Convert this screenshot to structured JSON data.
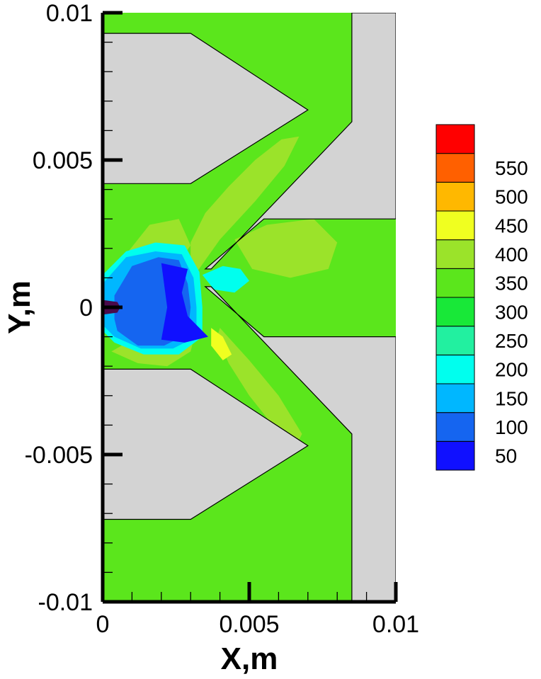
{
  "chart_data": {
    "type": "contour",
    "xlabel": "X,m",
    "ylabel": "Y,m",
    "xlim": [
      0,
      0.01
    ],
    "ylim": [
      -0.01,
      0.01
    ],
    "x_ticks": [
      {
        "value": 0,
        "label": "0"
      },
      {
        "value": 0.005,
        "label": "0.005"
      },
      {
        "value": 0.01,
        "label": "0.01"
      }
    ],
    "y_ticks": [
      {
        "value": 0.01,
        "label": "0.01"
      },
      {
        "value": 0.005,
        "label": "0.005"
      },
      {
        "value": 0,
        "label": "0"
      },
      {
        "value": -0.005,
        "label": "-0.005"
      },
      {
        "value": -0.01,
        "label": "-0.01"
      }
    ],
    "x_minor_step": 0.001,
    "y_minor_step": 0.001,
    "legend_position": "right",
    "levels": [
      {
        "value": 50,
        "label": "50",
        "color": "#1010ff"
      },
      {
        "value": 100,
        "label": "100",
        "color": "#1565f0"
      },
      {
        "value": 150,
        "label": "150",
        "color": "#00b7ff"
      },
      {
        "value": 200,
        "label": "200",
        "color": "#00ffee"
      },
      {
        "value": 250,
        "label": "250",
        "color": "#22f0a0"
      },
      {
        "value": 300,
        "label": "300",
        "color": "#18e838"
      },
      {
        "value": 350,
        "label": "350",
        "color": "#5be61c"
      },
      {
        "value": 400,
        "label": "400",
        "color": "#9be32a"
      },
      {
        "value": 450,
        "label": "450",
        "color": "#f0ff20"
      },
      {
        "value": 500,
        "label": "500",
        "color": "#ffb800"
      },
      {
        "value": 550,
        "label": "550",
        "color": "#ff6000"
      },
      {
        "value": 600,
        "label": "",
        "color": "#ff0000"
      }
    ],
    "background_fill_color": "#5be61c",
    "solid_color": "#d3d3d3",
    "solids": [
      {
        "name": "upper-electrode",
        "points": [
          [
            0,
            0.0093
          ],
          [
            0.003,
            0.0093
          ],
          [
            0.007,
            0.0067
          ],
          [
            0.003,
            0.0042
          ],
          [
            0,
            0.0042
          ]
        ]
      },
      {
        "name": "lower-electrode",
        "points": [
          [
            0,
            -0.0021
          ],
          [
            0.003,
            -0.0021
          ],
          [
            0.007,
            -0.0047
          ],
          [
            0.003,
            -0.0072
          ],
          [
            0,
            -0.0072
          ]
        ]
      },
      {
        "name": "right-upper-wall",
        "points": [
          [
            0.0085,
            0.0063
          ],
          [
            0.0085,
            0.01
          ],
          [
            0.01,
            0.01
          ],
          [
            0.01,
            0.003
          ],
          [
            0.0055,
            0.003
          ],
          [
            0.0035,
            0.0013
          ],
          [
            0.0037,
            0.0013
          ]
        ]
      },
      {
        "name": "right-lower-wall",
        "points": [
          [
            0.0035,
            0.0007
          ],
          [
            0.0055,
            -0.001
          ],
          [
            0.01,
            -0.001
          ],
          [
            0.01,
            -0.01
          ],
          [
            0.0085,
            -0.01
          ],
          [
            0.0085,
            -0.0043
          ],
          [
            0.0037,
            0.0007
          ]
        ]
      }
    ],
    "contour_regions": [
      {
        "level": 400,
        "points": [
          [
            0.003,
            0.0009
          ],
          [
            0.004,
            0.0023
          ],
          [
            0.0052,
            0.0036
          ],
          [
            0.0062,
            0.0048
          ],
          [
            0.0067,
            0.0058
          ],
          [
            0.0061,
            0.0057
          ],
          [
            0.0052,
            0.005
          ],
          [
            0.0043,
            0.0041
          ],
          [
            0.0035,
            0.0032
          ],
          [
            0.003,
            0.0022
          ]
        ]
      },
      {
        "level": 400,
        "points": [
          [
            0.004,
            -0.0007
          ],
          [
            0.005,
            -0.0018
          ],
          [
            0.006,
            -0.003
          ],
          [
            0.0068,
            -0.0043
          ],
          [
            0.0066,
            -0.0047
          ],
          [
            0.0058,
            -0.004
          ],
          [
            0.005,
            -0.003
          ],
          [
            0.0043,
            -0.0019
          ],
          [
            0.0039,
            -0.001
          ]
        ]
      },
      {
        "level": 400,
        "points": [
          [
            0.0045,
            0.0023
          ],
          [
            0.0056,
            0.0028
          ],
          [
            0.0072,
            0.003
          ],
          [
            0.008,
            0.0022
          ],
          [
            0.0077,
            0.0013
          ],
          [
            0.0064,
            0.001
          ],
          [
            0.0051,
            0.0013
          ]
        ]
      },
      {
        "level": 400,
        "points": [
          [
            0.0008,
            0.0018
          ],
          [
            0.0016,
            0.0028
          ],
          [
            0.0026,
            0.003
          ],
          [
            0.003,
            0.0021
          ],
          [
            0.0025,
            0.0014
          ],
          [
            0.0015,
            0.0012
          ]
        ]
      },
      {
        "level": 400,
        "points": [
          [
            0.0003,
            -0.0015
          ],
          [
            0.0012,
            -0.0019
          ],
          [
            0.0022,
            -0.002
          ],
          [
            0.003,
            -0.0015
          ],
          [
            0.0032,
            -0.0007
          ],
          [
            0.002,
            -0.001
          ],
          [
            0.001,
            -0.0011
          ]
        ]
      },
      {
        "level": 450,
        "points": [
          [
            0.0037,
            -0.0007
          ],
          [
            0.0041,
            -0.001
          ],
          [
            0.0044,
            -0.0016
          ],
          [
            0.0041,
            -0.0018
          ],
          [
            0.0037,
            -0.0013
          ]
        ]
      },
      {
        "level": 200,
        "points": [
          [
            0.0034,
            0.0011
          ],
          [
            0.0041,
            0.0014
          ],
          [
            0.0047,
            0.0013
          ],
          [
            0.005,
            0.0009
          ],
          [
            0.0045,
            0.0005
          ],
          [
            0.0038,
            0.0006
          ]
        ]
      },
      {
        "level": 200,
        "points": [
          [
            0,
            0.0011
          ],
          [
            0.0008,
            0.0019
          ],
          [
            0.0018,
            0.0022
          ],
          [
            0.0028,
            0.0021
          ],
          [
            0.0033,
            0.0012
          ],
          [
            0.0034,
            0.0
          ],
          [
            0.0034,
            -0.001
          ],
          [
            0.0026,
            -0.0016
          ],
          [
            0.0014,
            -0.0016
          ],
          [
            0.0004,
            -0.0012
          ],
          [
            0,
            -0.0008
          ]
        ]
      },
      {
        "level": 150,
        "points": [
          [
            0,
            0.0008
          ],
          [
            0.0008,
            0.0017
          ],
          [
            0.0018,
            0.0019
          ],
          [
            0.0027,
            0.0018
          ],
          [
            0.0031,
            0.001
          ],
          [
            0.0032,
            0.0
          ],
          [
            0.0032,
            -0.001
          ],
          [
            0.0024,
            -0.0014
          ],
          [
            0.0013,
            -0.0014
          ],
          [
            0.0004,
            -0.001
          ],
          [
            0,
            -0.0006
          ]
        ]
      },
      {
        "level": 100,
        "points": [
          [
            0.0004,
            0.0004
          ],
          [
            0.001,
            0.0014
          ],
          [
            0.0019,
            0.0017
          ],
          [
            0.0026,
            0.0016
          ],
          [
            0.0029,
            0.0008
          ],
          [
            0.003,
            0.0
          ],
          [
            0.0029,
            -0.0009
          ],
          [
            0.0021,
            -0.0013
          ],
          [
            0.0012,
            -0.0013
          ],
          [
            0.0005,
            -0.0008
          ],
          [
            0.0004,
            -0.0004
          ]
        ]
      },
      {
        "level": 50,
        "points": [
          [
            0.002,
            0.0015
          ],
          [
            0.0029,
            0.0013
          ],
          [
            0.0027,
            0.0005
          ],
          [
            0.0029,
            -0.0003
          ],
          [
            0.0036,
            -0.001
          ],
          [
            0.0028,
            -0.0012
          ],
          [
            0.002,
            -0.0011
          ],
          [
            0.0022,
            0.0
          ]
        ]
      },
      {
        "level": 0,
        "points": [
          [
            0,
            0.00025
          ],
          [
            0.0005,
            0.00018
          ],
          [
            0.0006,
            0.0
          ],
          [
            0.0005,
            -0.00018
          ],
          [
            0,
            -0.00025
          ]
        ]
      }
    ]
  }
}
